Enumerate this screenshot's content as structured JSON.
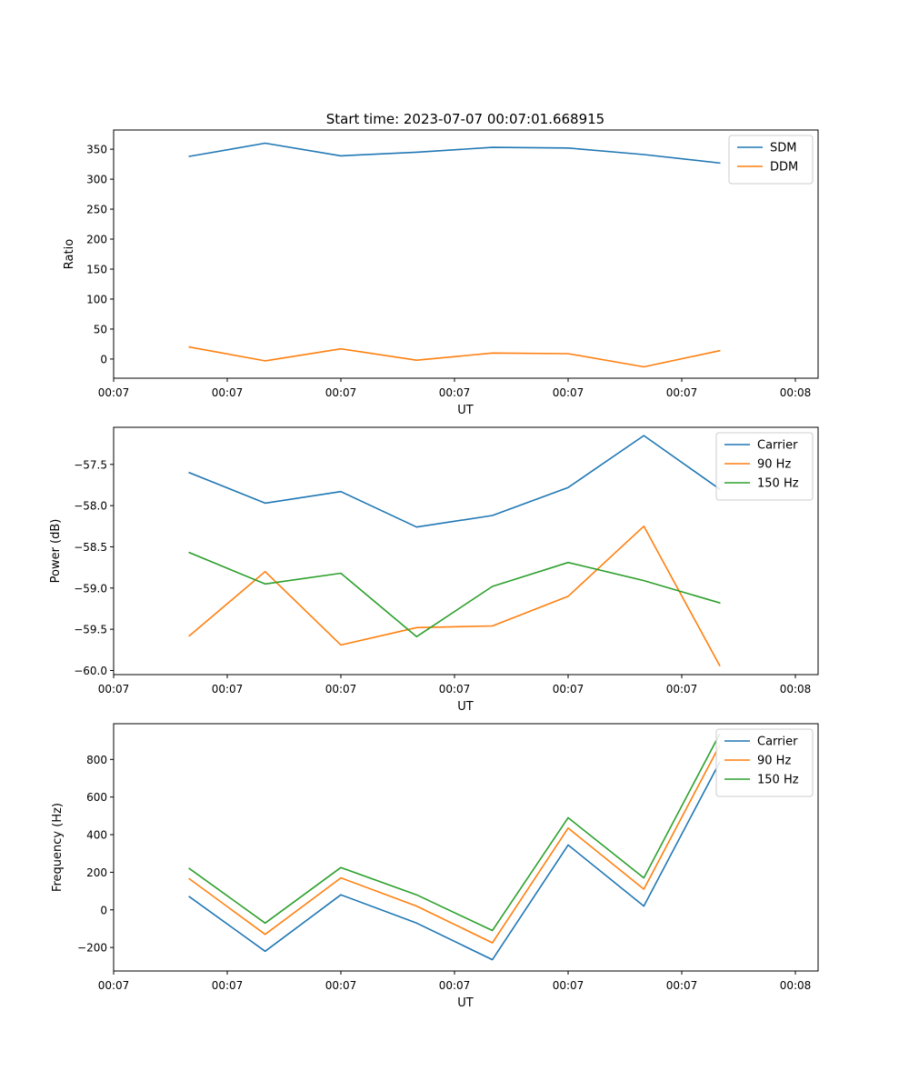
{
  "figure_title": "Start time: 2023-07-07 00:07:01.668915",
  "colors": {
    "blue": "#1f77b4",
    "orange": "#ff7f0e",
    "green": "#2ca02c"
  },
  "chart_data": [
    {
      "type": "line",
      "title": "Start time: 2023-07-07 00:07:01.668915",
      "xlabel": "UT",
      "ylabel": "Ratio",
      "x": [
        1,
        2,
        3,
        4,
        5,
        6,
        7,
        8
      ],
      "xlim": [
        0.0,
        9.3
      ],
      "x_tick_positions": [
        0.0,
        1.5,
        3.0,
        4.5,
        6.0,
        7.5,
        9.0
      ],
      "x_tick_labels": [
        "00:07",
        "00:07",
        "00:07",
        "00:07",
        "00:07",
        "00:07",
        "00:08"
      ],
      "ylim": [
        -32,
        382
      ],
      "y_ticks": [
        0,
        50,
        100,
        150,
        200,
        250,
        300,
        350
      ],
      "y_tick_labels": [
        "0",
        "50",
        "100",
        "150",
        "200",
        "250",
        "300",
        "350"
      ],
      "legend_position": "top-right",
      "series": [
        {
          "name": "SDM",
          "color": "#1f77b4",
          "values": [
            338,
            360,
            339,
            345,
            353,
            352,
            341,
            327
          ]
        },
        {
          "name": "DDM",
          "color": "#ff7f0e",
          "values": [
            20,
            -3,
            17,
            -2,
            10,
            9,
            -13,
            14
          ]
        }
      ]
    },
    {
      "type": "line",
      "title": "",
      "xlabel": "UT",
      "ylabel": "Power (dB)",
      "x": [
        1,
        2,
        3,
        4,
        5,
        6,
        7,
        8
      ],
      "xlim": [
        0.0,
        9.3
      ],
      "x_tick_positions": [
        0.0,
        1.5,
        3.0,
        4.5,
        6.0,
        7.5,
        9.0
      ],
      "x_tick_labels": [
        "00:07",
        "00:07",
        "00:07",
        "00:07",
        "00:07",
        "00:07",
        "00:08"
      ],
      "ylim": [
        -60.05,
        -57.05
      ],
      "y_ticks": [
        -60.0,
        -59.5,
        -59.0,
        -58.5,
        -58.0,
        -57.5
      ],
      "y_tick_labels": [
        "−60.0",
        "−59.5",
        "−59.0",
        "−58.5",
        "−58.0",
        "−57.5"
      ],
      "legend_position": "top-right",
      "series": [
        {
          "name": "Carrier",
          "color": "#1f77b4",
          "values": [
            -57.6,
            -57.97,
            -57.83,
            -58.26,
            -58.12,
            -57.78,
            -57.15,
            -57.8
          ]
        },
        {
          "name": "90 Hz",
          "color": "#ff7f0e",
          "values": [
            -59.58,
            -58.8,
            -59.69,
            -59.48,
            -59.46,
            -59.1,
            -58.25,
            -59.94
          ]
        },
        {
          "name": "150 Hz",
          "color": "#2ca02c",
          "values": [
            -58.57,
            -58.95,
            -58.82,
            -59.59,
            -58.98,
            -58.69,
            -58.91,
            -59.18
          ]
        }
      ]
    },
    {
      "type": "line",
      "title": "",
      "xlabel": "UT",
      "ylabel": "Frequency (Hz)",
      "x": [
        1,
        2,
        3,
        4,
        5,
        6,
        7,
        8
      ],
      "xlim": [
        0.0,
        9.3
      ],
      "x_tick_positions": [
        0.0,
        1.5,
        3.0,
        4.5,
        6.0,
        7.5,
        9.0
      ],
      "x_tick_labels": [
        "00:07",
        "00:07",
        "00:07",
        "00:07",
        "00:07",
        "00:07",
        "00:08"
      ],
      "ylim": [
        -325,
        990
      ],
      "y_ticks": [
        -200,
        0,
        200,
        400,
        600,
        800
      ],
      "y_tick_labels": [
        "−200",
        "0",
        "200",
        "400",
        "600",
        "800"
      ],
      "legend_position": "top-right",
      "series": [
        {
          "name": "Carrier",
          "color": "#1f77b4",
          "values": [
            70,
            -220,
            80,
            -70,
            -265,
            345,
            20,
            785
          ]
        },
        {
          "name": "90 Hz",
          "color": "#ff7f0e",
          "values": [
            165,
            -130,
            170,
            20,
            -175,
            435,
            110,
            875
          ]
        },
        {
          "name": "150 Hz",
          "color": "#2ca02c",
          "values": [
            220,
            -70,
            225,
            80,
            -110,
            490,
            170,
            935
          ]
        }
      ]
    }
  ]
}
